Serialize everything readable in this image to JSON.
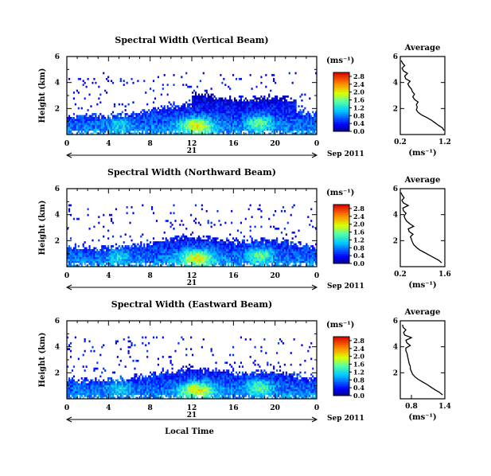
{
  "chart_data": [
    {
      "type": "heatmap",
      "title": "Spectral Width (Vertical Beam)",
      "ylabel": "Height (km)",
      "y_ticks": [
        "2",
        "4",
        "6"
      ],
      "ylim": [
        0,
        6
      ],
      "x_ticks": [
        "0",
        "4",
        "8",
        "12",
        "16",
        "20",
        "0"
      ],
      "xlim": [
        0,
        24
      ],
      "date_day": "21",
      "date_month": "Sep 2011",
      "colorbar": {
        "unit": "(ms⁻¹)",
        "labels": [
          "0.0",
          "0.4",
          "0.8",
          "1.2",
          "1.6",
          "2.0",
          "2.4",
          "2.8"
        ],
        "range": [
          0,
          3.0
        ]
      },
      "average": {
        "title": "Average",
        "unit": "(ms⁻¹)",
        "x_ticks": [
          "0.2",
          "1.2"
        ],
        "xlim": [
          0.2,
          1.2
        ],
        "y_ticks": [
          "2",
          "4",
          "6"
        ],
        "ylim": [
          0,
          6
        ],
        "profile": [
          [
            1.18,
            0.3
          ],
          [
            1.15,
            0.5
          ],
          [
            1.06,
            0.7
          ],
          [
            0.98,
            0.9
          ],
          [
            0.9,
            1.1
          ],
          [
            0.8,
            1.3
          ],
          [
            0.68,
            1.5
          ],
          [
            0.6,
            1.7
          ],
          [
            0.56,
            1.9
          ],
          [
            0.58,
            2.1
          ],
          [
            0.56,
            2.3
          ],
          [
            0.6,
            2.5
          ],
          [
            0.52,
            2.7
          ],
          [
            0.48,
            2.9
          ],
          [
            0.52,
            3.1
          ],
          [
            0.47,
            3.3
          ],
          [
            0.45,
            3.5
          ],
          [
            0.4,
            3.7
          ],
          [
            0.37,
            3.9
          ],
          [
            0.42,
            4.1
          ],
          [
            0.32,
            4.3
          ],
          [
            0.3,
            4.5
          ],
          [
            0.36,
            4.7
          ],
          [
            0.27,
            4.9
          ],
          [
            0.24,
            5.1
          ],
          [
            0.3,
            5.3
          ],
          [
            0.25,
            5.5
          ],
          [
            0.22,
            5.7
          ]
        ]
      }
    },
    {
      "type": "heatmap",
      "title": "Spectral Width (Northward Beam)",
      "ylabel": "Height (km)",
      "y_ticks": [
        "2",
        "4",
        "6"
      ],
      "ylim": [
        0,
        6
      ],
      "x_ticks": [
        "0",
        "4",
        "8",
        "12",
        "16",
        "20",
        "0"
      ],
      "xlim": [
        0,
        24
      ],
      "date_day": "21",
      "date_month": "Sep 2011",
      "colorbar": {
        "unit": "(ms⁻¹)",
        "labels": [
          "0.0",
          "0.4",
          "0.8",
          "1.2",
          "1.6",
          "2.0",
          "2.4",
          "2.8"
        ],
        "range": [
          0,
          3.0
        ]
      },
      "average": {
        "title": "Average",
        "unit": "(ms⁻¹)",
        "x_ticks": [
          "0.2",
          "1.6"
        ],
        "xlim": [
          0.2,
          1.6
        ],
        "y_ticks": [
          "2",
          "4",
          "6"
        ],
        "ylim": [
          0,
          6
        ],
        "profile": [
          [
            1.5,
            0.3
          ],
          [
            1.4,
            0.5
          ],
          [
            1.25,
            0.7
          ],
          [
            1.1,
            0.9
          ],
          [
            0.95,
            1.1
          ],
          [
            0.8,
            1.3
          ],
          [
            0.7,
            1.5
          ],
          [
            0.62,
            1.7
          ],
          [
            0.58,
            1.9
          ],
          [
            0.55,
            2.1
          ],
          [
            0.52,
            2.3
          ],
          [
            0.6,
            2.5
          ],
          [
            0.48,
            2.7
          ],
          [
            0.45,
            2.9
          ],
          [
            0.62,
            3.1
          ],
          [
            0.5,
            3.3
          ],
          [
            0.4,
            3.5
          ],
          [
            0.35,
            3.7
          ],
          [
            0.32,
            3.9
          ],
          [
            0.38,
            4.1
          ],
          [
            0.3,
            4.3
          ],
          [
            0.28,
            4.5
          ],
          [
            0.45,
            4.7
          ],
          [
            0.3,
            4.9
          ],
          [
            0.25,
            5.1
          ],
          [
            0.32,
            5.3
          ],
          [
            0.26,
            5.5
          ],
          [
            0.22,
            5.7
          ]
        ]
      }
    },
    {
      "type": "heatmap",
      "title": "Spectral Width (Eastward Beam)",
      "ylabel": "Height (km)",
      "xlabel": "Local Time",
      "y_ticks": [
        "2",
        "4",
        "6"
      ],
      "ylim": [
        0,
        6
      ],
      "x_ticks": [
        "0",
        "4",
        "8",
        "12",
        "16",
        "20",
        "0"
      ],
      "xlim": [
        0,
        24
      ],
      "date_day": "21",
      "date_month": "Sep 2011",
      "colorbar": {
        "unit": "(ms⁻¹)",
        "labels": [
          "0.0",
          "0.4",
          "0.8",
          "1.2",
          "1.6",
          "2.0",
          "2.4",
          "2.8"
        ],
        "range": [
          0,
          3.0
        ]
      },
      "average": {
        "title": "Average",
        "unit": "(ms⁻¹)",
        "x_ticks": [
          "0.8",
          "1.4"
        ],
        "xlim": [
          0.6,
          1.4
        ],
        "y_ticks": [
          "2",
          "4",
          "6"
        ],
        "ylim": [
          0,
          6
        ],
        "profile": [
          [
            1.36,
            0.3
          ],
          [
            1.3,
            0.5
          ],
          [
            1.22,
            0.7
          ],
          [
            1.15,
            0.9
          ],
          [
            1.08,
            1.1
          ],
          [
            1.0,
            1.3
          ],
          [
            0.92,
            1.5
          ],
          [
            0.86,
            1.7
          ],
          [
            0.82,
            1.9
          ],
          [
            0.8,
            2.1
          ],
          [
            0.78,
            2.3
          ],
          [
            0.78,
            2.5
          ],
          [
            0.76,
            2.7
          ],
          [
            0.75,
            2.9
          ],
          [
            0.74,
            3.1
          ],
          [
            0.73,
            3.3
          ],
          [
            0.72,
            3.5
          ],
          [
            0.7,
            3.7
          ],
          [
            0.7,
            3.9
          ],
          [
            0.78,
            4.1
          ],
          [
            0.72,
            4.3
          ],
          [
            0.7,
            4.5
          ],
          [
            0.8,
            4.7
          ],
          [
            0.68,
            4.9
          ],
          [
            0.66,
            5.1
          ],
          [
            0.7,
            5.3
          ],
          [
            0.65,
            5.5
          ],
          [
            0.64,
            5.7
          ]
        ]
      }
    }
  ]
}
